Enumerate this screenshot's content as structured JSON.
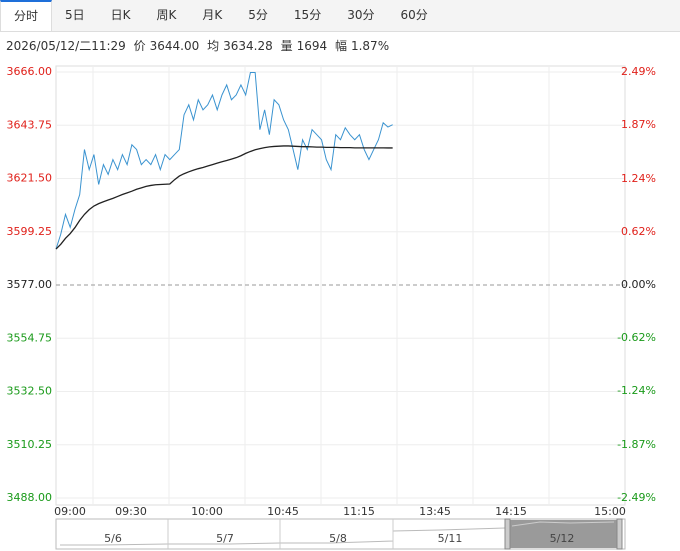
{
  "tabs": [
    "分时",
    "5日",
    "日K",
    "周K",
    "月K",
    "5分",
    "15分",
    "30分",
    "60分"
  ],
  "info": {
    "datetime": "2026/05/12/二11:29",
    "price_label": "价",
    "price": "3644.00",
    "avg_label": "均",
    "avg": "3634.28",
    "vol_label": "量",
    "vol": "1694",
    "amp_label": "幅",
    "amp": "1.87%"
  },
  "chart_data": {
    "type": "line",
    "x": [
      0,
      2,
      4,
      6,
      8,
      10,
      12,
      14,
      16,
      18,
      20,
      22,
      24,
      26,
      28,
      30,
      32,
      34,
      36,
      38,
      40,
      42,
      44,
      46,
      48,
      50,
      52,
      54,
      56,
      58,
      60,
      62,
      64,
      66,
      68,
      70,
      72,
      74,
      76,
      78,
      80,
      82,
      84,
      86,
      88,
      90,
      92,
      94,
      96,
      98,
      100,
      102,
      104,
      106,
      108,
      110,
      112,
      114,
      116,
      118,
      120,
      122,
      124,
      126,
      128,
      130,
      132,
      134,
      136,
      138,
      140,
      142
    ],
    "xlim": [
      0,
      240
    ],
    "xlabels": [
      "09:00",
      "09:30",
      "10:00",
      "10:45",
      "11:15",
      "13:45",
      "14:15",
      "15:00"
    ],
    "series": [
      {
        "color": "#3a93d0",
        "values": [
          3592.0,
          3598.2,
          3606.5,
          3601.1,
          3608.6,
          3614.8,
          3633.6,
          3625.2,
          3631.5,
          3619.0,
          3627.3,
          3623.2,
          3629.4,
          3625.2,
          3631.5,
          3627.3,
          3635.6,
          3633.6,
          3627.3,
          3629.4,
          3627.3,
          3631.5,
          3625.2,
          3631.5,
          3629.4,
          3631.5,
          3633.6,
          3648.1,
          3652.3,
          3646.0,
          3654.4,
          3650.2,
          3652.3,
          3656.4,
          3650.2,
          3656.4,
          3660.6,
          3654.4,
          3656.4,
          3660.6,
          3656.4,
          3665.8,
          3665.8,
          3641.9,
          3650.2,
          3639.8,
          3654.4,
          3652.3,
          3646.0,
          3641.9,
          3633.6,
          3625.2,
          3637.7,
          3633.6,
          3641.9,
          3639.8,
          3637.7,
          3629.4,
          3625.2,
          3639.8,
          3637.7,
          3642.7,
          3639.8,
          3637.7,
          3639.8,
          3633.6,
          3629.4,
          3633.6,
          3637.7,
          3644.8,
          3643.0,
          3644.0
        ]
      },
      {
        "color": "#222222",
        "values": [
          3592.0,
          3594,
          3596.5,
          3598.5,
          3601,
          3604,
          3606.5,
          3608.5,
          3610,
          3611,
          3611.8,
          3612.5,
          3613.2,
          3614,
          3614.8,
          3615.5,
          3616.2,
          3617,
          3617.6,
          3618.2,
          3618.6,
          3618.9,
          3619,
          3619.1,
          3619.2,
          3621,
          3622.5,
          3623.5,
          3624.3,
          3625,
          3625.6,
          3626.1,
          3626.7,
          3627.3,
          3627.9,
          3628.5,
          3629,
          3629.6,
          3630.2,
          3631,
          3632,
          3632.8,
          3633.5,
          3634,
          3634.4,
          3634.7,
          3634.9,
          3635,
          3635.1,
          3635.1,
          3635.0,
          3634.9,
          3634.8,
          3634.8,
          3634.7,
          3634.6,
          3634.6,
          3634.5,
          3634.5,
          3634.5,
          3634.4,
          3634.4,
          3634.4,
          3634.3,
          3634.3,
          3634.3,
          3634.3,
          3634.3,
          3634.3,
          3634.3,
          3634.28,
          3634.28
        ]
      }
    ],
    "ylim": [
      3488,
      3666
    ],
    "yticks": [
      {
        "value": 3488,
        "label": "3488.00"
      },
      {
        "value": 3510.25,
        "label": "3510.25"
      },
      {
        "value": 3532.5,
        "label": "3532.50"
      },
      {
        "value": 3554.75,
        "label": "3554.75"
      },
      {
        "value": 3577,
        "label": "3577.00"
      },
      {
        "value": 3599.25,
        "label": "3599.25"
      },
      {
        "value": 3621.5,
        "label": "3621.50"
      },
      {
        "value": 3643.75,
        "label": "3643.75"
      },
      {
        "value": 3666,
        "label": "3666.00"
      }
    ],
    "y2lim": [
      -2.49,
      2.49
    ],
    "y2ticks": [
      {
        "value": -2.49,
        "label": "-2.49%"
      },
      {
        "value": -1.87,
        "label": "-1.87%"
      },
      {
        "value": -1.24,
        "label": "-1.24%"
      },
      {
        "value": -0.62,
        "label": "-0.62%"
      },
      {
        "value": 0,
        "label": "0.00%"
      },
      {
        "value": 0.62,
        "label": "0.62%"
      },
      {
        "value": 1.24,
        "label": "1.24%"
      },
      {
        "value": 1.87,
        "label": "1.87%"
      },
      {
        "value": 2.49,
        "label": "2.49%"
      }
    ],
    "base": 3577,
    "up_color": "#e0201a",
    "down_color": "#1a9a1a",
    "base_color": "#222222",
    "grid": true
  },
  "navigator": {
    "dates": [
      "5/6",
      "5/7",
      "5/8",
      "5/11",
      "5/12"
    ]
  }
}
